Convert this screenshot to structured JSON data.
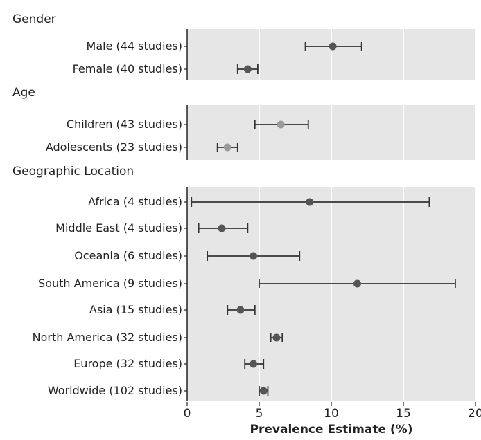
{
  "chart_data": {
    "type": "forest",
    "xlabel": "Prevalence Estimate (%)",
    "xlim": [
      0,
      20
    ],
    "xticks": [
      0,
      5,
      10,
      15,
      20
    ],
    "grid": true,
    "groups": [
      {
        "title": "Gender",
        "rows": [
          {
            "label": "Male (44 studies)",
            "estimate": 10.1,
            "lower": 8.2,
            "upper": 12.1
          },
          {
            "label": "Female (40 studies)",
            "estimate": 4.2,
            "lower": 3.5,
            "upper": 4.9
          }
        ]
      },
      {
        "title": "Age",
        "rows": [
          {
            "label": "Children (43 studies)",
            "estimate": 6.5,
            "lower": 4.7,
            "upper": 8.4
          },
          {
            "label": "Adolescents (23 studies)",
            "estimate": 2.8,
            "lower": 2.1,
            "upper": 3.5
          }
        ]
      },
      {
        "title": "Geographic Location",
        "rows": [
          {
            "label": "Africa (4 studies)",
            "estimate": 8.5,
            "lower": 0.3,
            "upper": 16.8
          },
          {
            "label": "Middle East (4 studies)",
            "estimate": 2.4,
            "lower": 0.8,
            "upper": 4.2
          },
          {
            "label": "Oceania (6 studies)",
            "estimate": 4.6,
            "lower": 1.4,
            "upper": 7.8
          },
          {
            "label": "South America (9 studies)",
            "estimate": 11.8,
            "lower": 5.0,
            "upper": 18.6
          },
          {
            "label": "Asia (15 studies)",
            "estimate": 3.7,
            "lower": 2.8,
            "upper": 4.7
          },
          {
            "label": "North America (32 studies)",
            "estimate": 6.2,
            "lower": 5.8,
            "upper": 6.6
          },
          {
            "label": "Europe (32 studies)",
            "estimate": 4.6,
            "lower": 4.0,
            "upper": 5.3
          },
          {
            "label": "Worldwide (102 studies)",
            "estimate": 5.3,
            "lower": 5.0,
            "upper": 5.6
          }
        ]
      }
    ]
  },
  "colors": {
    "panel_bg": "#e6e6e6",
    "gridline": "#ffffff",
    "point": "#555555",
    "point_age": "#9a9a9a",
    "whisker": "#333333",
    "axis": "#222222",
    "text": "#222222"
  }
}
